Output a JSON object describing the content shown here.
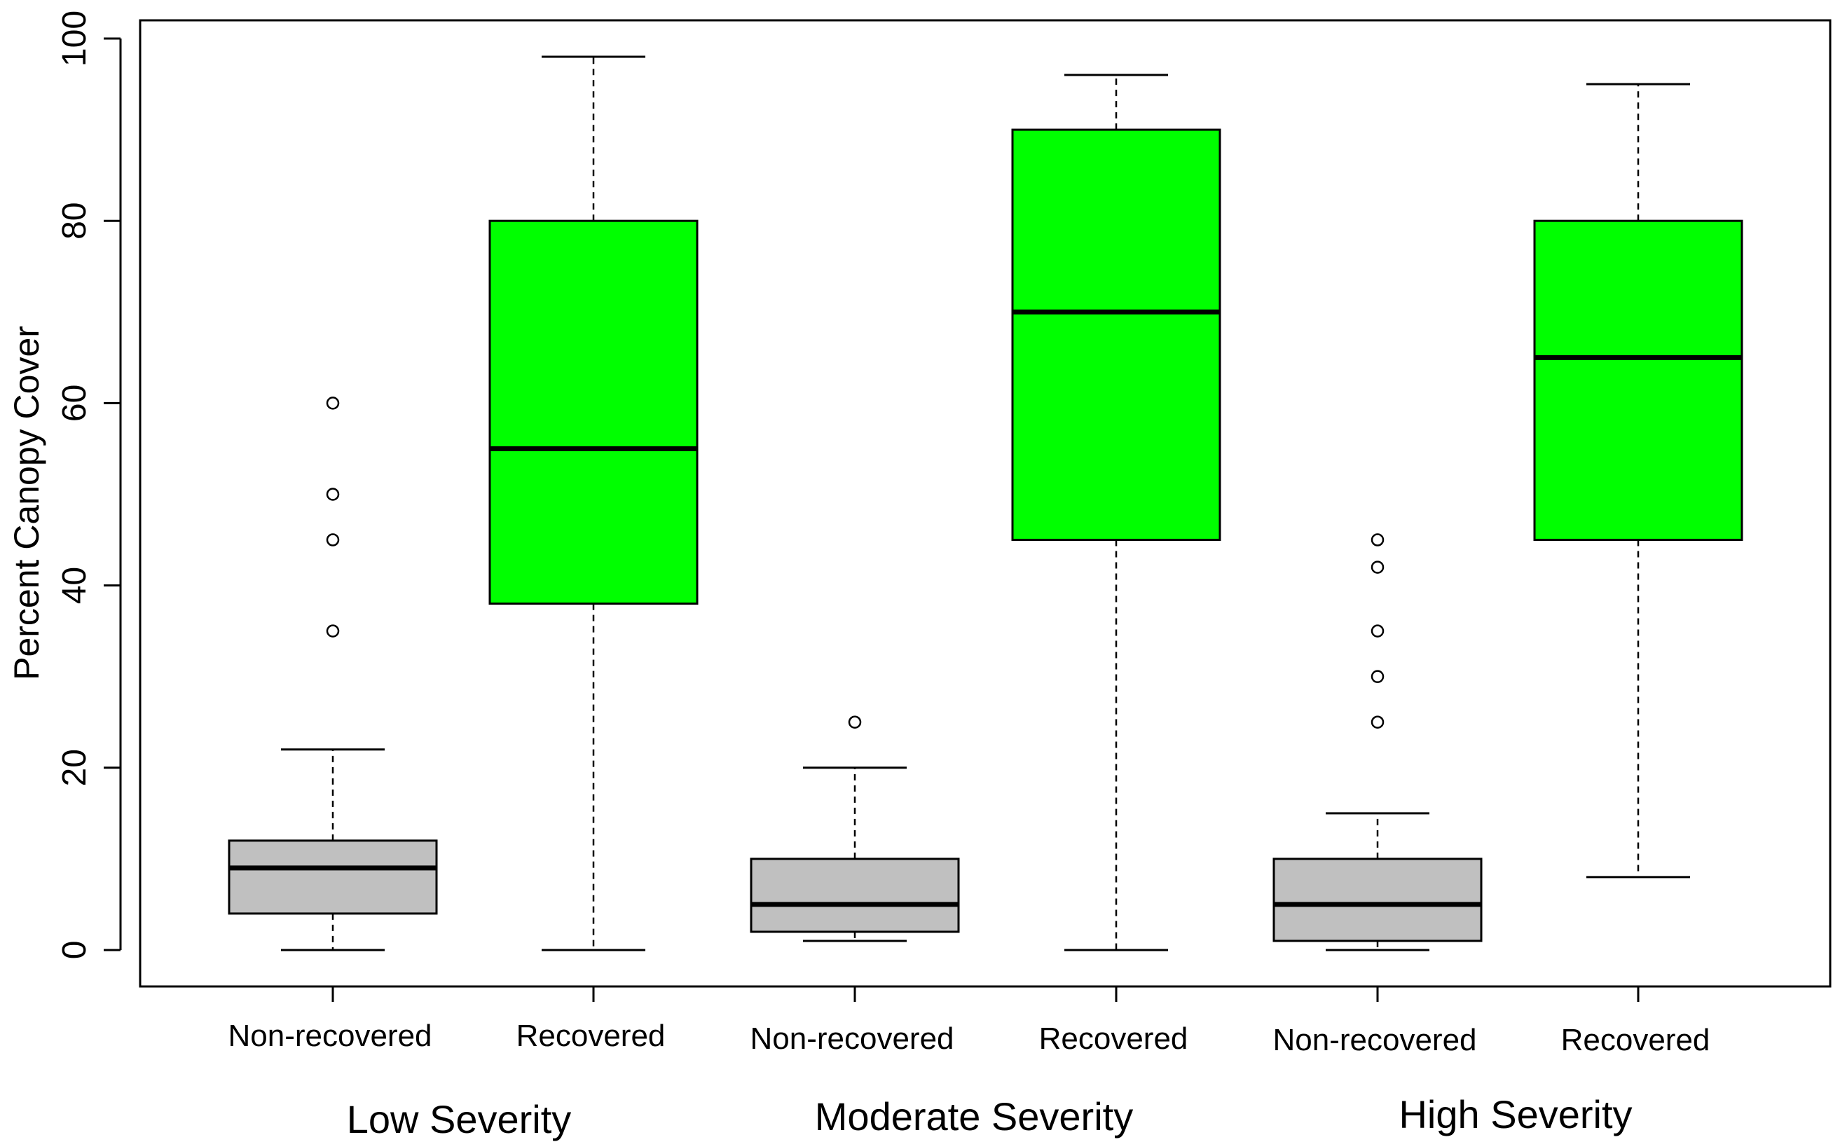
{
  "chart_data": {
    "type": "box",
    "title": "",
    "xlabel": "",
    "ylabel": "Percent Canopy Cover",
    "ylim": [
      -4,
      102
    ],
    "yticks": [
      0,
      20,
      40,
      60,
      80,
      100
    ],
    "colors": {
      "non_recovered": "#c0c0c0",
      "recovered": "#00ff00",
      "stroke": "#000000"
    },
    "groups": [
      {
        "label": "Low Severity",
        "boxes": [
          {
            "label": "Non-recovered",
            "color_key": "non_recovered",
            "whisker_low": 0,
            "q1": 4,
            "median": 9,
            "q3": 12,
            "whisker_high": 22,
            "outliers": [
              35,
              45,
              50,
              60
            ]
          },
          {
            "label": "Recovered",
            "color_key": "recovered",
            "whisker_low": 0,
            "q1": 38,
            "median": 55,
            "q3": 80,
            "whisker_high": 98,
            "outliers": []
          }
        ]
      },
      {
        "label": "Moderate Severity",
        "boxes": [
          {
            "label": "Non-recovered",
            "color_key": "non_recovered",
            "whisker_low": 1,
            "q1": 2,
            "median": 5,
            "q3": 10,
            "whisker_high": 20,
            "outliers": [
              25
            ]
          },
          {
            "label": "Recovered",
            "color_key": "recovered",
            "whisker_low": 0,
            "q1": 45,
            "median": 70,
            "q3": 90,
            "whisker_high": 96,
            "outliers": []
          }
        ]
      },
      {
        "label": "High Severity",
        "boxes": [
          {
            "label": "Non-recovered",
            "color_key": "non_recovered",
            "whisker_low": 0,
            "q1": 1,
            "median": 5,
            "q3": 10,
            "whisker_high": 15,
            "outliers": [
              25,
              30,
              35,
              42,
              45
            ]
          },
          {
            "label": "Recovered",
            "color_key": "recovered",
            "whisker_low": 8,
            "q1": 45,
            "median": 65,
            "q3": 80,
            "whisker_high": 95,
            "outliers": []
          }
        ]
      }
    ]
  }
}
